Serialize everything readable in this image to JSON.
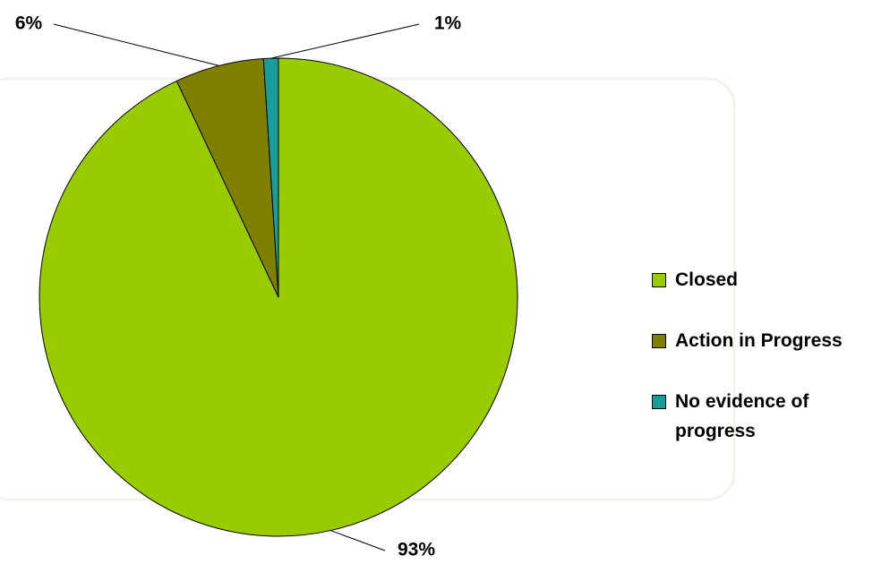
{
  "chart_data": {
    "type": "pie",
    "categories": [
      "Closed",
      "Action in Progress",
      "No evidence of progress"
    ],
    "values": [
      93,
      6,
      1
    ],
    "value_labels": [
      "93%",
      "6%",
      "1%"
    ],
    "colors": [
      "#99cc00",
      "#808000",
      "#1a9c9c"
    ],
    "legend": "right"
  }
}
